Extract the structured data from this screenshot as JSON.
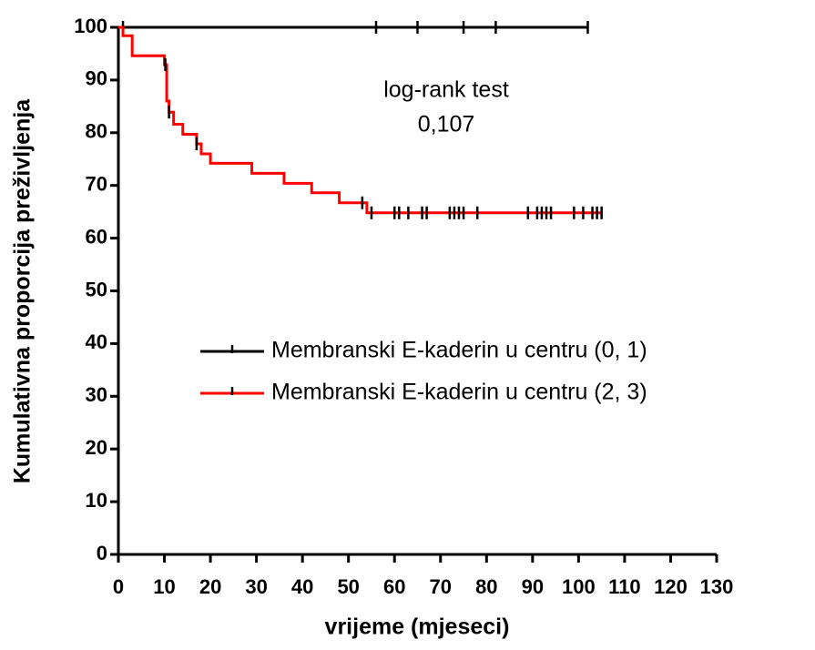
{
  "chart_data": {
    "type": "kaplan-meier",
    "x_label": "vrijeme (mjeseci)",
    "y_label": "Kumulativna proporcija preživljenja",
    "annotations": [
      "log-rank test",
      "0,107"
    ],
    "xlim": [
      0,
      130
    ],
    "xticks": [
      0,
      10,
      20,
      30,
      40,
      50,
      60,
      70,
      80,
      90,
      100,
      110,
      120,
      130
    ],
    "ylim": [
      0,
      100
    ],
    "yticks": [
      0,
      10,
      20,
      30,
      40,
      50,
      60,
      70,
      80,
      90,
      100
    ],
    "series": [
      {
        "name": "Membranski E-kaderin u centru (0, 1)",
        "color": "#000000",
        "x": [
          0,
          102
        ],
        "values": [
          100,
          100
        ],
        "censored": [
          1,
          56,
          65,
          75,
          82,
          102
        ]
      },
      {
        "name": "Membranski E-kaderin u centru (2, 3)",
        "color": "#ff0000",
        "x": [
          0,
          1,
          3,
          10,
          10.5,
          11,
          12,
          14,
          17,
          18,
          20,
          29,
          36,
          42,
          48,
          54,
          105
        ],
        "values": [
          100,
          98.4,
          94.6,
          92.9,
          86,
          83.9,
          81.6,
          79.7,
          77.9,
          76,
          74.2,
          72.3,
          70.4,
          68.6,
          66.7,
          64.8,
          64.8
        ],
        "censored": [
          10.2,
          11,
          17,
          53,
          55,
          60,
          61,
          63,
          66,
          67,
          72,
          73,
          74,
          75,
          78,
          89,
          91,
          92,
          93,
          94,
          99,
          101,
          103,
          104,
          105
        ]
      }
    ]
  }
}
